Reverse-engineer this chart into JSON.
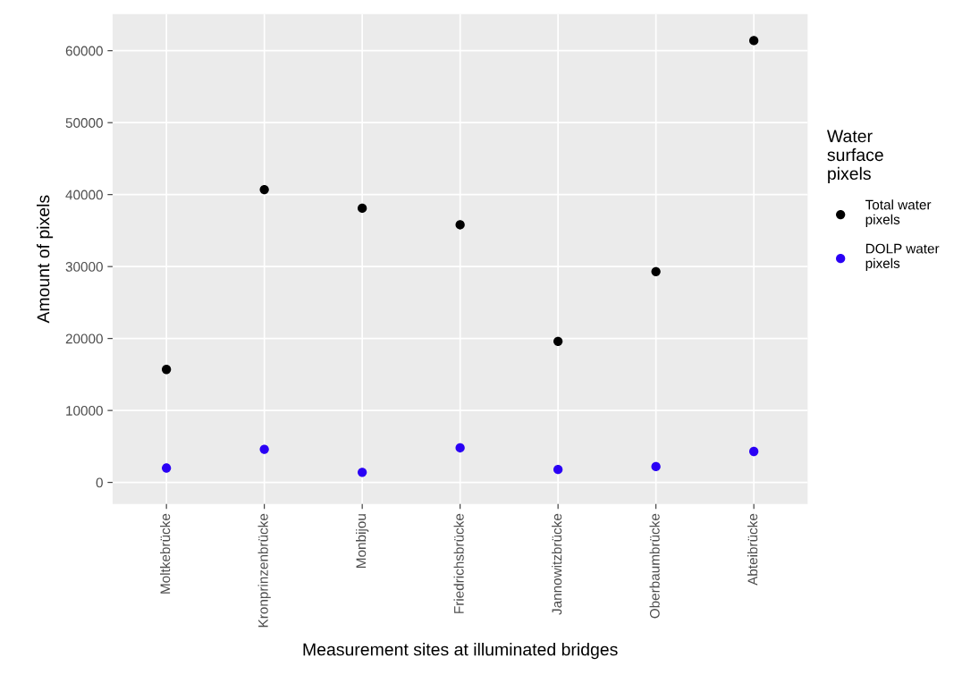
{
  "chart_data": {
    "type": "scatter",
    "xlabel": "Measurement sites at illuminated bridges",
    "ylabel": "Amount of pixels",
    "legend_title": "Water\nsurface\npixels",
    "categories": [
      "Moltkebrücke",
      "Kronprinzenbrücke",
      "Monbijou",
      "Friedrichsbrücke",
      "Jannowitzbrücke",
      "Oberbaumbrücke",
      "Abteibrücke"
    ],
    "series": [
      {
        "name": "Total water\npixels",
        "color": "#000000",
        "values": [
          15700,
          40700,
          38100,
          35800,
          19600,
          29300,
          61400
        ]
      },
      {
        "name": "DOLP water\npixels",
        "color": "#2a00f5",
        "values": [
          2000,
          4600,
          1400,
          4800,
          1800,
          2200,
          4300
        ]
      }
    ],
    "ylim": [
      -3000,
      65100
    ],
    "yticks": [
      0,
      10000,
      20000,
      30000,
      40000,
      50000,
      60000
    ],
    "grid": true,
    "legend": "right",
    "marker": "circle"
  }
}
